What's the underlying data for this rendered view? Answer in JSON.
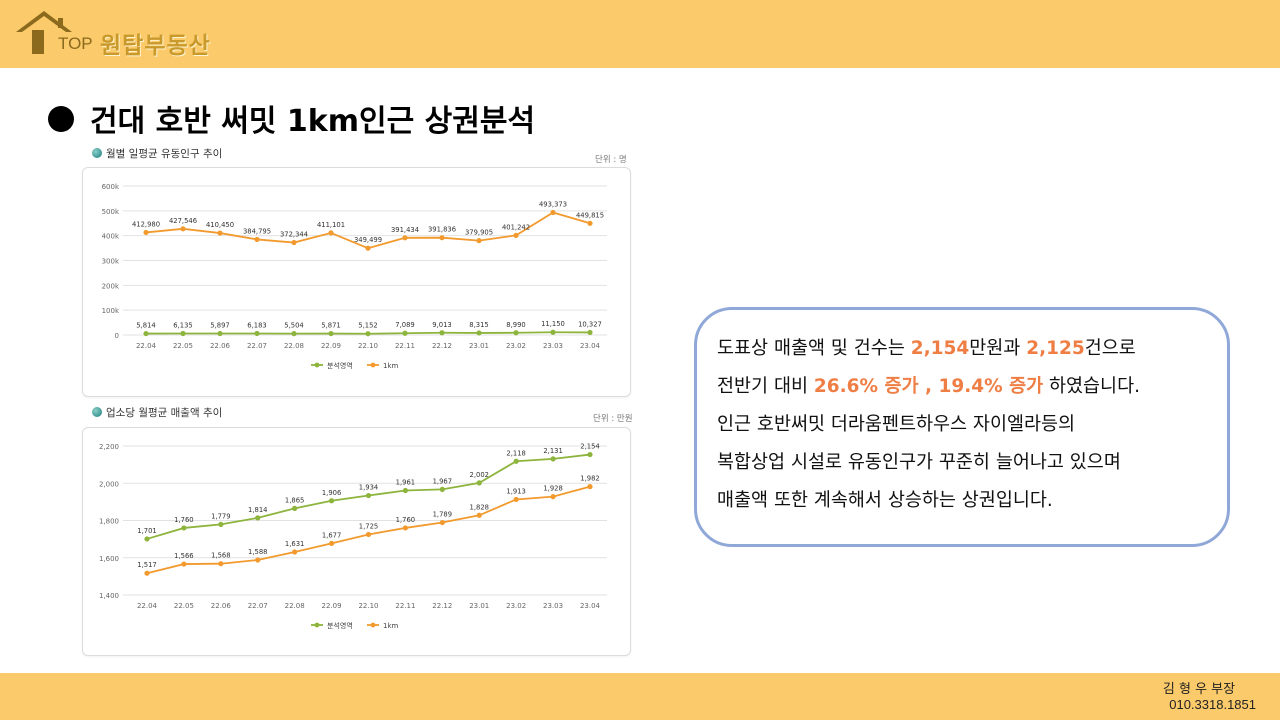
{
  "header": {
    "logo_top": "TOP",
    "logo_name": "원탑부동산",
    "bg_color": "#fbca6a"
  },
  "title": "건대 호반 써밋 1km인근 상권분석",
  "chart_data": [
    {
      "type": "line",
      "title": "월별 일평균 유동인구 추이",
      "unit": "단위 : 명",
      "categories": [
        "22.04",
        "22.05",
        "22.06",
        "22.07",
        "22.08",
        "22.09",
        "22.10",
        "22.11",
        "22.12",
        "23.01",
        "23.02",
        "23.03",
        "23.04"
      ],
      "y_ticks": [
        "0",
        "100k",
        "200k",
        "300k",
        "400k",
        "500k",
        "600k"
      ],
      "ylim": [
        0,
        600000
      ],
      "series": [
        {
          "name": "분석영역",
          "color": "#8db43c",
          "values": [
            5814,
            6135,
            5897,
            6183,
            5504,
            5871,
            5152,
            7089,
            9013,
            8315,
            8990,
            11150,
            10327
          ],
          "labels": [
            "5,814",
            "6,135",
            "5,897",
            "6,183",
            "5,504",
            "5,871",
            "5,152",
            "7,089",
            "9,013",
            "8,315",
            "8,990",
            "11,150",
            "10,327"
          ]
        },
        {
          "name": "1km",
          "color": "#f29a2e",
          "values": [
            412980,
            427546,
            410450,
            384795,
            372344,
            411101,
            349499,
            391434,
            391836,
            379905,
            401242,
            493373,
            449815
          ],
          "labels": [
            "412,980",
            "427,546",
            "410,450",
            "384,795",
            "372,344",
            "411,101",
            "349,499",
            "391,434",
            "391,836",
            "379,905",
            "401,242",
            "493,373",
            "449,815"
          ]
        }
      ]
    },
    {
      "type": "line",
      "title": "업소당 월평균 매출액 추이",
      "unit": "단위 : 만원",
      "categories": [
        "22.04",
        "22.05",
        "22.06",
        "22.07",
        "22.08",
        "22.09",
        "22.10",
        "22.11",
        "22.12",
        "23.01",
        "23.02",
        "23.03",
        "23.04"
      ],
      "y_ticks": [
        "1,400",
        "1,600",
        "1,800",
        "2,000",
        "2,200"
      ],
      "ylim": [
        1400,
        2200
      ],
      "series": [
        {
          "name": "분석영역",
          "color": "#8db43c",
          "values": [
            1701,
            1760,
            1779,
            1814,
            1865,
            1906,
            1934,
            1961,
            1967,
            2002,
            2118,
            2131,
            2154
          ],
          "labels": [
            "1,701",
            "1,760",
            "1,779",
            "1,814",
            "1,865",
            "1,906",
            "1,934",
            "1,961",
            "1,967",
            "2,002",
            "2,118",
            "2,131",
            "2,154"
          ]
        },
        {
          "name": "1km",
          "color": "#f29a2e",
          "values": [
            1517,
            1566,
            1568,
            1588,
            1631,
            1677,
            1725,
            1760,
            1789,
            1828,
            1913,
            1928,
            1982
          ],
          "labels": [
            "1,517",
            "1,566",
            "1,568",
            "1,588",
            "1,631",
            "1,677",
            "1,725",
            "1,760",
            "1,789",
            "1,828",
            "1,913",
            "1,928",
            "1,982"
          ]
        }
      ]
    }
  ],
  "info": {
    "l1a": "도표상 매출액 및 건수는 ",
    "l1b": "2,154",
    "l1c": "만원과 ",
    "l1d": "2,125",
    "l1e": "건으로",
    "l2a": "전반기 대비 ",
    "l2b": "26.6% 증가 , 19.4% 증가",
    "l2c": " 하였습니다.",
    "l3": "인근 호반써밋 더라움펜트하우스 자이엘라등의",
    "l4": "복합상업 시설로 유동인구가 꾸준히 늘어나고 있으며",
    "l5": "매출액 또한 계속해서 상승하는 상권입니다.",
    "highlight_color": "#ef7e45",
    "border_color": "#8fa8d8"
  },
  "footer": {
    "name": "김 형 우 부장",
    "phone": "010.3318.1851"
  }
}
